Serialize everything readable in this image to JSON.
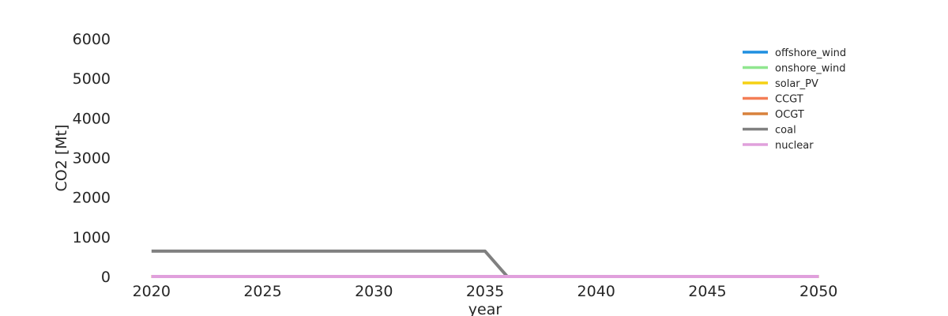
{
  "chart_data": {
    "type": "line",
    "xlabel": "year",
    "ylabel": "CO2 [Mt]",
    "xlim": [
      2018.8,
      2051.2
    ],
    "ylim": [
      0,
      6000
    ],
    "xticks": [
      "2020",
      "2025",
      "2030",
      "2035",
      "2040",
      "2045",
      "2050"
    ],
    "yticks": [
      "0",
      "1000",
      "2000",
      "3000",
      "4000",
      "5000",
      "6000"
    ],
    "grid": false,
    "legend_position": "top-right",
    "x": [
      2020,
      2021,
      2022,
      2023,
      2024,
      2025,
      2026,
      2027,
      2028,
      2029,
      2030,
      2031,
      2032,
      2033,
      2034,
      2035,
      2036,
      2037,
      2038,
      2039,
      2040,
      2041,
      2042,
      2043,
      2044,
      2045,
      2046,
      2047,
      2048,
      2049,
      2050
    ],
    "series": [
      {
        "name": "offshore_wind",
        "color": "#1f8fe0",
        "values": [
          0,
          0,
          0,
          0,
          0,
          0,
          0,
          0,
          0,
          0,
          0,
          0,
          0,
          0,
          0,
          0,
          0,
          0,
          0,
          0,
          0,
          0,
          0,
          0,
          0,
          0,
          0,
          0,
          0,
          0,
          0
        ]
      },
      {
        "name": "onshore_wind",
        "color": "#90e68f",
        "values": [
          0,
          0,
          0,
          0,
          0,
          0,
          0,
          0,
          0,
          0,
          0,
          0,
          0,
          0,
          0,
          0,
          0,
          0,
          0,
          0,
          0,
          0,
          0,
          0,
          0,
          0,
          0,
          0,
          0,
          0,
          0
        ]
      },
      {
        "name": "solar_PV",
        "color": "#f5d114",
        "values": [
          0,
          0,
          0,
          0,
          0,
          0,
          0,
          0,
          0,
          0,
          0,
          0,
          0,
          0,
          0,
          0,
          0,
          0,
          0,
          0,
          0,
          0,
          0,
          0,
          0,
          0,
          0,
          0,
          0,
          0,
          0
        ]
      },
      {
        "name": "CCGT",
        "color": "#f47e56",
        "values": [
          0,
          0,
          0,
          0,
          0,
          0,
          0,
          0,
          0,
          0,
          0,
          0,
          0,
          0,
          0,
          0,
          0,
          0,
          0,
          0,
          0,
          0,
          0,
          0,
          0,
          0,
          0,
          0,
          0,
          0,
          0
        ]
      },
      {
        "name": "OCGT",
        "color": "#d8813c",
        "values": [
          0,
          0,
          0,
          0,
          0,
          0,
          0,
          0,
          0,
          0,
          0,
          0,
          0,
          0,
          0,
          0,
          0,
          0,
          0,
          0,
          0,
          0,
          0,
          0,
          0,
          0,
          0,
          0,
          0,
          0,
          0
        ]
      },
      {
        "name": "coal",
        "color": "#808080",
        "values": [
          640,
          640,
          640,
          640,
          640,
          640,
          640,
          640,
          640,
          640,
          640,
          640,
          640,
          640,
          640,
          640,
          0,
          0,
          0,
          0,
          0,
          0,
          0,
          0,
          0,
          0,
          0,
          0,
          0,
          0,
          0
        ]
      },
      {
        "name": "nuclear",
        "color": "#e0a0dc",
        "values": [
          0,
          0,
          0,
          0,
          0,
          0,
          0,
          0,
          0,
          0,
          0,
          0,
          0,
          0,
          0,
          0,
          0,
          0,
          0,
          0,
          0,
          0,
          0,
          0,
          0,
          0,
          0,
          0,
          0,
          0,
          0
        ]
      }
    ]
  }
}
